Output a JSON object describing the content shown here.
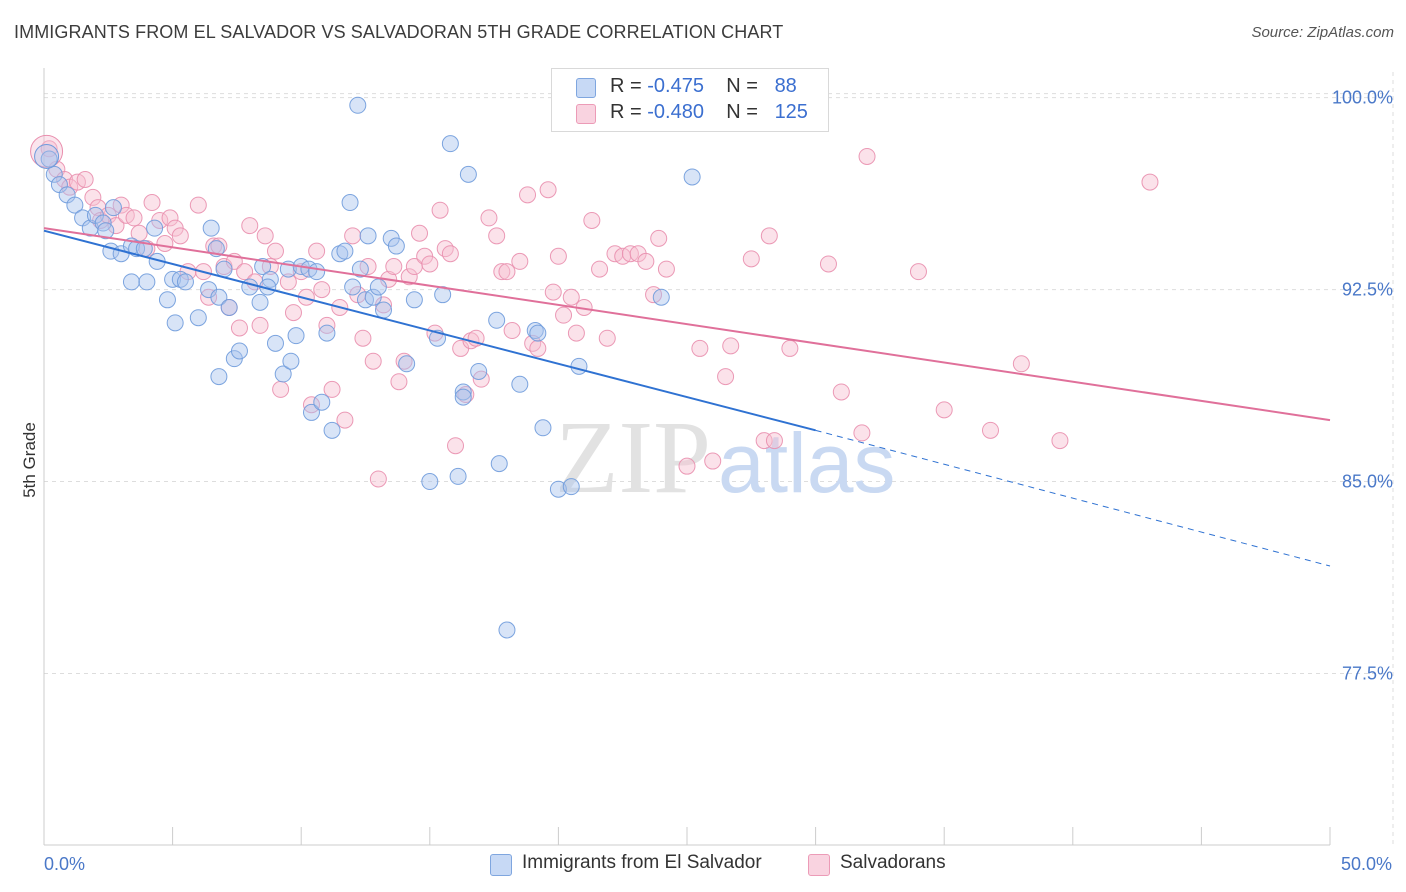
{
  "title": "IMMIGRANTS FROM EL SALVADOR VS SALVADORAN 5TH GRADE CORRELATION CHART",
  "source": "Source: ZipAtlas.com",
  "watermark": {
    "part1": "ZIP",
    "part2": "atlas"
  },
  "colors": {
    "blue_fill": "#a9c4ee",
    "blue_stroke": "#6f9bdc",
    "blue_line": "#2f72d2",
    "pink_fill": "#f6bfd1",
    "pink_stroke": "#e98fae",
    "pink_line": "#e0709a",
    "grid": "#dddddd",
    "axis_text": "#4a78c8"
  },
  "legend_top": {
    "rows": [
      {
        "r_label": "R =",
        "r_value": "-0.475",
        "n_label": "N =",
        "n_value": "88"
      },
      {
        "r_label": "R =",
        "r_value": "-0.480",
        "n_label": "N =",
        "n_value": "125"
      }
    ]
  },
  "legend_bottom": {
    "items": [
      "Immigrants from El Salvador",
      "Salvadorans"
    ]
  },
  "chart_data": {
    "type": "scatter",
    "title": "IMMIGRANTS FROM EL SALVADOR VS SALVADORAN 5TH GRADE CORRELATION CHART",
    "xlabel": "",
    "ylabel": "5th Grade",
    "xlim": [
      0,
      50
    ],
    "ylim": [
      70.8,
      101.0
    ],
    "x_tick_labels": [
      "0.0%",
      "50.0%"
    ],
    "y_ticks": [
      77.5,
      85.0,
      92.5,
      100.0
    ],
    "y_tick_labels": [
      "77.5%",
      "85.0%",
      "92.5%",
      "100.0%"
    ],
    "grid": true,
    "legend_position": "top-center",
    "series": [
      {
        "name": "Immigrants from El Salvador",
        "R": -0.475,
        "N": 88,
        "trend": {
          "x0": 0.0,
          "y0": 94.8,
          "x1": 30.0,
          "y1": 87.0,
          "dash_to_x": 50.0,
          "dash_to_y": 81.7
        },
        "points": [
          [
            0.2,
            97.6
          ],
          [
            0.4,
            97.0
          ],
          [
            0.6,
            96.6
          ],
          [
            0.9,
            96.2
          ],
          [
            1.2,
            95.8
          ],
          [
            1.5,
            95.3
          ],
          [
            1.8,
            94.9
          ],
          [
            2.0,
            95.4
          ],
          [
            2.3,
            95.1
          ],
          [
            2.7,
            95.7
          ],
          [
            2.4,
            94.8
          ],
          [
            2.6,
            94.0
          ],
          [
            3.0,
            93.9
          ],
          [
            3.4,
            94.2
          ],
          [
            3.6,
            94.1
          ],
          [
            3.9,
            94.1
          ],
          [
            4.3,
            94.9
          ],
          [
            4.4,
            93.6
          ],
          [
            3.4,
            92.8
          ],
          [
            4.0,
            92.8
          ],
          [
            4.8,
            92.1
          ],
          [
            5.0,
            92.9
          ],
          [
            5.3,
            92.9
          ],
          [
            5.5,
            92.8
          ],
          [
            5.1,
            91.2
          ],
          [
            6.0,
            91.4
          ],
          [
            6.4,
            92.5
          ],
          [
            6.5,
            94.9
          ],
          [
            6.7,
            94.1
          ],
          [
            7.0,
            93.3
          ],
          [
            6.8,
            92.2
          ],
          [
            7.2,
            91.8
          ],
          [
            7.4,
            89.8
          ],
          [
            7.6,
            90.1
          ],
          [
            6.8,
            89.1
          ],
          [
            8.0,
            92.6
          ],
          [
            8.4,
            92.0
          ],
          [
            8.5,
            93.4
          ],
          [
            8.8,
            92.9
          ],
          [
            8.7,
            92.6
          ],
          [
            9.0,
            90.4
          ],
          [
            9.3,
            89.2
          ],
          [
            9.6,
            89.7
          ],
          [
            9.5,
            93.3
          ],
          [
            9.8,
            90.7
          ],
          [
            10.0,
            93.4
          ],
          [
            10.3,
            93.3
          ],
          [
            10.6,
            93.2
          ],
          [
            10.4,
            87.7
          ],
          [
            10.8,
            88.1
          ],
          [
            11.0,
            90.8
          ],
          [
            11.2,
            87.0
          ],
          [
            11.5,
            93.9
          ],
          [
            11.7,
            94.0
          ],
          [
            11.9,
            95.9
          ],
          [
            12.0,
            92.6
          ],
          [
            12.3,
            93.3
          ],
          [
            12.5,
            92.1
          ],
          [
            12.6,
            94.6
          ],
          [
            12.8,
            92.2
          ],
          [
            12.2,
            99.7
          ],
          [
            13.0,
            92.6
          ],
          [
            13.2,
            91.7
          ],
          [
            13.5,
            94.5
          ],
          [
            13.7,
            94.2
          ],
          [
            14.1,
            89.6
          ],
          [
            14.4,
            92.1
          ],
          [
            15.0,
            85.0
          ],
          [
            15.3,
            90.6
          ],
          [
            15.5,
            92.3
          ],
          [
            15.8,
            98.2
          ],
          [
            16.1,
            85.2
          ],
          [
            16.3,
            88.5
          ],
          [
            16.3,
            88.3
          ],
          [
            16.5,
            97.0
          ],
          [
            16.9,
            89.3
          ],
          [
            17.6,
            91.3
          ],
          [
            17.7,
            85.7
          ],
          [
            18.0,
            79.2
          ],
          [
            18.5,
            88.8
          ],
          [
            19.1,
            90.9
          ],
          [
            19.2,
            90.8
          ],
          [
            19.4,
            87.1
          ],
          [
            20.0,
            84.7
          ],
          [
            20.5,
            84.8
          ],
          [
            20.8,
            89.5
          ],
          [
            24.0,
            92.2
          ],
          [
            25.2,
            96.9
          ]
        ]
      },
      {
        "name": "Salvadorans",
        "R": -0.48,
        "N": 125,
        "trend": {
          "x0": 0.0,
          "y0": 94.9,
          "x1": 50.0,
          "y1": 87.4
        },
        "points": [
          [
            0.2,
            98.0
          ],
          [
            0.5,
            97.2
          ],
          [
            0.8,
            96.8
          ],
          [
            1.0,
            96.5
          ],
          [
            1.3,
            96.7
          ],
          [
            1.6,
            96.8
          ],
          [
            1.9,
            96.1
          ],
          [
            2.1,
            95.7
          ],
          [
            2.2,
            95.2
          ],
          [
            2.5,
            95.4
          ],
          [
            2.8,
            95.0
          ],
          [
            3.0,
            95.8
          ],
          [
            3.2,
            95.4
          ],
          [
            3.5,
            95.3
          ],
          [
            3.7,
            94.7
          ],
          [
            4.0,
            94.1
          ],
          [
            4.2,
            95.9
          ],
          [
            4.5,
            95.2
          ],
          [
            4.7,
            94.3
          ],
          [
            4.9,
            95.3
          ],
          [
            5.1,
            94.9
          ],
          [
            5.3,
            94.6
          ],
          [
            5.6,
            93.2
          ],
          [
            6.0,
            95.8
          ],
          [
            6.2,
            93.2
          ],
          [
            6.4,
            92.2
          ],
          [
            6.6,
            94.2
          ],
          [
            6.8,
            94.2
          ],
          [
            7.0,
            93.4
          ],
          [
            7.2,
            91.8
          ],
          [
            7.4,
            93.6
          ],
          [
            7.6,
            91.0
          ],
          [
            7.8,
            93.2
          ],
          [
            8.0,
            95.0
          ],
          [
            8.2,
            92.8
          ],
          [
            8.4,
            91.1
          ],
          [
            8.6,
            94.6
          ],
          [
            8.8,
            93.4
          ],
          [
            9.0,
            94.0
          ],
          [
            9.2,
            88.6
          ],
          [
            9.5,
            92.8
          ],
          [
            9.7,
            91.6
          ],
          [
            10.0,
            93.2
          ],
          [
            10.2,
            92.2
          ],
          [
            10.4,
            88.0
          ],
          [
            10.6,
            94.0
          ],
          [
            10.8,
            92.5
          ],
          [
            11.0,
            91.1
          ],
          [
            11.2,
            88.6
          ],
          [
            11.5,
            91.8
          ],
          [
            11.7,
            87.4
          ],
          [
            12.0,
            94.6
          ],
          [
            12.2,
            92.3
          ],
          [
            12.4,
            90.6
          ],
          [
            12.6,
            93.4
          ],
          [
            12.8,
            89.7
          ],
          [
            13.0,
            85.1
          ],
          [
            13.2,
            91.9
          ],
          [
            13.4,
            92.9
          ],
          [
            13.6,
            93.4
          ],
          [
            13.8,
            88.9
          ],
          [
            14.0,
            89.7
          ],
          [
            14.2,
            93.0
          ],
          [
            14.4,
            93.4
          ],
          [
            14.6,
            94.7
          ],
          [
            14.8,
            93.8
          ],
          [
            15.0,
            93.5
          ],
          [
            15.2,
            90.8
          ],
          [
            15.4,
            95.6
          ],
          [
            15.6,
            94.1
          ],
          [
            15.8,
            93.9
          ],
          [
            16.0,
            86.4
          ],
          [
            16.2,
            90.2
          ],
          [
            16.4,
            88.4
          ],
          [
            16.6,
            90.5
          ],
          [
            16.8,
            90.6
          ],
          [
            17.0,
            89.0
          ],
          [
            17.3,
            95.3
          ],
          [
            17.6,
            94.6
          ],
          [
            17.8,
            93.2
          ],
          [
            18.0,
            93.2
          ],
          [
            18.2,
            90.9
          ],
          [
            18.5,
            93.6
          ],
          [
            18.8,
            96.2
          ],
          [
            19.0,
            90.4
          ],
          [
            19.2,
            90.2
          ],
          [
            19.6,
            96.4
          ],
          [
            19.8,
            92.4
          ],
          [
            20.0,
            93.8
          ],
          [
            20.2,
            91.5
          ],
          [
            20.5,
            92.2
          ],
          [
            20.7,
            90.8
          ],
          [
            21.0,
            91.8
          ],
          [
            21.3,
            95.2
          ],
          [
            21.6,
            93.3
          ],
          [
            21.9,
            90.6
          ],
          [
            22.2,
            93.9
          ],
          [
            22.5,
            93.8
          ],
          [
            22.8,
            93.9
          ],
          [
            23.1,
            93.9
          ],
          [
            23.4,
            93.6
          ],
          [
            23.7,
            92.3
          ],
          [
            23.9,
            94.5
          ],
          [
            24.2,
            93.3
          ],
          [
            25.0,
            85.6
          ],
          [
            25.5,
            90.2
          ],
          [
            26.0,
            85.8
          ],
          [
            26.5,
            89.1
          ],
          [
            26.7,
            90.3
          ],
          [
            27.5,
            93.7
          ],
          [
            28.0,
            86.6
          ],
          [
            28.4,
            86.6
          ],
          [
            28.2,
            94.6
          ],
          [
            29.0,
            90.2
          ],
          [
            30.5,
            93.5
          ],
          [
            31.0,
            88.5
          ],
          [
            31.8,
            86.9
          ],
          [
            32.0,
            97.7
          ],
          [
            34.0,
            93.2
          ],
          [
            35.0,
            87.8
          ],
          [
            36.8,
            87.0
          ],
          [
            38.0,
            89.6
          ],
          [
            39.5,
            86.6
          ],
          [
            43.0,
            96.7
          ],
          [
            25.2,
            100.1
          ]
        ]
      }
    ]
  }
}
